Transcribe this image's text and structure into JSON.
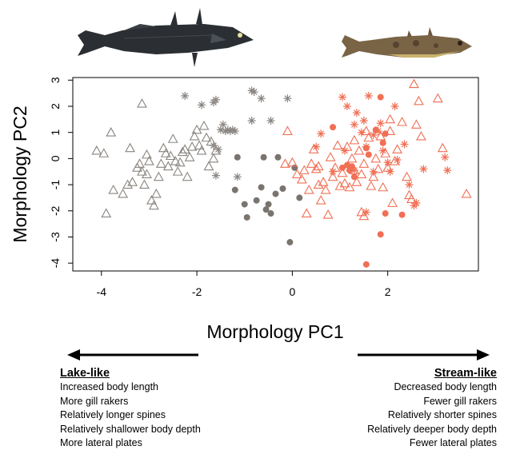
{
  "chart_data": {
    "type": "scatter",
    "xlabel": "Morphology PC1",
    "ylabel": "Morphology PC2",
    "xlim": [
      -4.6,
      3.9
    ],
    "ylim": [
      -4.3,
      3.1
    ],
    "xticks": [
      -4,
      -2,
      0,
      2
    ],
    "yticks": [
      3,
      2,
      1,
      0,
      -1,
      -2,
      -3,
      -4
    ],
    "grid": false,
    "legend": "none",
    "series": [
      {
        "color": "#8a8580",
        "marker": "triangle",
        "points": [
          [
            -4.1,
            0.3
          ],
          [
            -3.95,
            0.2
          ],
          [
            -3.8,
            1.0
          ],
          [
            -3.75,
            -1.2
          ],
          [
            -3.55,
            -1.35
          ],
          [
            -3.45,
            -1.0
          ],
          [
            -3.4,
            0.4
          ],
          [
            -3.35,
            -0.9
          ],
          [
            -3.25,
            -0.35
          ],
          [
            -3.2,
            -0.2
          ],
          [
            -3.15,
            -0.5
          ],
          [
            -3.1,
            -1.0
          ],
          [
            -3.05,
            -0.6
          ],
          [
            -3.0,
            -0.1
          ],
          [
            -2.95,
            -1.6
          ],
          [
            -2.9,
            -1.8
          ],
          [
            -2.85,
            -1.35
          ],
          [
            -2.8,
            -0.7
          ],
          [
            -2.75,
            -0.2
          ],
          [
            -2.7,
            0.4
          ],
          [
            -2.65,
            0.2
          ],
          [
            -2.6,
            -0.3
          ],
          [
            -2.55,
            0.1
          ],
          [
            -2.5,
            0.75
          ],
          [
            -2.45,
            -0.1
          ],
          [
            -2.4,
            -0.5
          ],
          [
            -2.35,
            -0.15
          ],
          [
            -2.3,
            0.25
          ],
          [
            -2.25,
            0.35
          ],
          [
            -2.2,
            -0.7
          ],
          [
            -2.15,
            0.05
          ],
          [
            -2.1,
            0.45
          ],
          [
            -2.05,
            0.85
          ],
          [
            -2.0,
            1.1
          ],
          [
            -1.95,
            0.5
          ],
          [
            -1.9,
            0.3
          ],
          [
            -1.85,
            1.25
          ],
          [
            -1.8,
            0.8
          ],
          [
            -1.75,
            -0.3
          ],
          [
            -1.7,
            0.65
          ],
          [
            -1.65,
            0.0
          ],
          [
            -1.6,
            0.3
          ],
          [
            -3.15,
            2.1
          ],
          [
            -3.9,
            -2.1
          ],
          [
            -3.05,
            0.15
          ]
        ]
      },
      {
        "color": "#8a8580",
        "marker": "asterisk",
        "points": [
          [
            -2.25,
            2.4
          ],
          [
            -1.9,
            2.05
          ],
          [
            -1.65,
            2.15
          ],
          [
            -1.6,
            2.25
          ],
          [
            -1.5,
            1.1
          ],
          [
            -1.4,
            1.05
          ],
          [
            -1.35,
            1.1
          ],
          [
            -1.3,
            1.05
          ],
          [
            -1.25,
            1.1
          ],
          [
            -1.2,
            1.05
          ],
          [
            -1.15,
            -0.7
          ],
          [
            -1.6,
            -0.65
          ],
          [
            -1.55,
            0.35
          ],
          [
            -0.85,
            2.6
          ],
          [
            -0.8,
            2.55
          ],
          [
            -0.65,
            2.3
          ],
          [
            -0.85,
            1.45
          ],
          [
            -0.45,
            1.45
          ],
          [
            -0.1,
            2.3
          ],
          [
            -1.45,
            1.3
          ],
          [
            -1.65,
            0.5
          ]
        ]
      },
      {
        "color": "#7a746e",
        "marker": "filled",
        "points": [
          [
            -1.15,
            0.05
          ],
          [
            -1.2,
            -1.2
          ],
          [
            -1.0,
            -1.75
          ],
          [
            -0.95,
            -2.25
          ],
          [
            -0.75,
            -1.6
          ],
          [
            -0.65,
            -1.1
          ],
          [
            -0.55,
            -1.95
          ],
          [
            -0.5,
            -1.75
          ],
          [
            -0.45,
            -2.1
          ],
          [
            -0.35,
            -1.35
          ],
          [
            -0.2,
            -1.15
          ],
          [
            -0.05,
            -3.2
          ],
          [
            0.05,
            -0.35
          ],
          [
            0.15,
            -1.5
          ],
          [
            -0.6,
            0.05
          ],
          [
            -0.3,
            0.05
          ]
        ]
      },
      {
        "color": "#f06f55",
        "marker": "triangle",
        "points": [
          [
            -0.15,
            -0.2
          ],
          [
            -0.1,
            1.05
          ],
          [
            0.0,
            -0.15
          ],
          [
            0.1,
            -0.6
          ],
          [
            0.2,
            -0.8
          ],
          [
            0.25,
            -0.45
          ],
          [
            0.3,
            -2.1
          ],
          [
            0.35,
            -1.2
          ],
          [
            0.4,
            -0.2
          ],
          [
            0.45,
            0.35
          ],
          [
            0.5,
            -0.4
          ],
          [
            0.55,
            -1.0
          ],
          [
            0.6,
            -1.6
          ],
          [
            0.65,
            -0.9
          ],
          [
            0.7,
            -1.2
          ],
          [
            0.75,
            -2.15
          ],
          [
            0.8,
            0.05
          ],
          [
            0.85,
            -0.7
          ],
          [
            0.9,
            -0.35
          ],
          [
            0.95,
            0.5
          ],
          [
            1.0,
            -1.05
          ],
          [
            1.05,
            -0.55
          ],
          [
            1.1,
            -0.95
          ],
          [
            1.15,
            0.45
          ],
          [
            1.2,
            -1.1
          ],
          [
            1.25,
            0.0
          ],
          [
            1.3,
            -0.45
          ],
          [
            1.35,
            -0.9
          ],
          [
            1.4,
            0.3
          ],
          [
            1.45,
            -0.6
          ],
          [
            1.5,
            -0.2
          ],
          [
            1.55,
            1.05
          ],
          [
            1.6,
            0.8
          ],
          [
            1.65,
            -1.05
          ],
          [
            1.7,
            -0.7
          ],
          [
            1.75,
            0.0
          ],
          [
            1.8,
            -0.4
          ],
          [
            1.85,
            0.85
          ],
          [
            1.9,
            -1.1
          ],
          [
            1.95,
            0.2
          ],
          [
            2.0,
            -0.35
          ],
          [
            2.05,
            1.05
          ],
          [
            2.1,
            -1.7
          ],
          [
            2.15,
            -0.1
          ],
          [
            2.2,
            0.35
          ],
          [
            2.3,
            1.4
          ],
          [
            2.4,
            -0.7
          ],
          [
            2.45,
            -1.4
          ],
          [
            2.55,
            2.85
          ],
          [
            2.6,
            1.3
          ],
          [
            2.65,
            2.2
          ],
          [
            2.7,
            0.85
          ],
          [
            2.5,
            -1.55
          ],
          [
            3.05,
            2.3
          ],
          [
            3.15,
            0.4
          ],
          [
            3.65,
            -1.35
          ],
          [
            1.45,
            -2.05
          ],
          [
            1.5,
            -2.2
          ],
          [
            2.05,
            1.5
          ],
          [
            1.3,
            0.7
          ],
          [
            0.55,
            -0.3
          ]
        ]
      },
      {
        "color": "#f06f55",
        "marker": "asterisk",
        "points": [
          [
            0.5,
            0.45
          ],
          [
            1.05,
            2.35
          ],
          [
            1.15,
            2.0
          ],
          [
            1.3,
            1.3
          ],
          [
            1.35,
            1.75
          ],
          [
            1.45,
            1.0
          ],
          [
            1.5,
            1.45
          ],
          [
            1.55,
            0.45
          ],
          [
            1.6,
            2.4
          ],
          [
            1.7,
            0.9
          ],
          [
            1.8,
            1.05
          ],
          [
            1.85,
            1.35
          ],
          [
            1.9,
            0.3
          ],
          [
            2.0,
            -0.15
          ],
          [
            2.05,
            -0.5
          ],
          [
            2.15,
            2.0
          ],
          [
            2.2,
            -0.05
          ],
          [
            2.35,
            0.55
          ],
          [
            2.45,
            -1.0
          ],
          [
            2.55,
            -1.8
          ],
          [
            2.6,
            -1.7
          ],
          [
            2.75,
            -0.4
          ],
          [
            3.2,
            0.05
          ],
          [
            3.25,
            -0.45
          ],
          [
            1.7,
            -0.5
          ],
          [
            1.1,
            0.3
          ],
          [
            0.6,
            0.95
          ],
          [
            1.3,
            -0.45
          ],
          [
            0.85,
            -0.5
          ],
          [
            1.55,
            -2.05
          ]
        ]
      },
      {
        "color": "#f06f55",
        "marker": "filled",
        "points": [
          [
            0.85,
            1.2
          ],
          [
            1.05,
            -0.35
          ],
          [
            1.15,
            -0.25
          ],
          [
            1.2,
            -0.45
          ],
          [
            1.25,
            -0.3
          ],
          [
            1.3,
            -0.7
          ],
          [
            1.55,
            0.4
          ],
          [
            1.6,
            0.15
          ],
          [
            1.75,
            1.1
          ],
          [
            1.85,
            2.35
          ],
          [
            1.9,
            0.6
          ],
          [
            1.95,
            -2.1
          ],
          [
            1.85,
            -2.9
          ],
          [
            1.55,
            -4.05
          ],
          [
            2.3,
            -2.15
          ],
          [
            1.95,
            0.95
          ]
        ]
      }
    ]
  },
  "annotations": {
    "left_heading": "Lake-like",
    "left_traits": [
      "Increased body length",
      "More gill rakers",
      "Relatively longer spines",
      "Relatively shallower body depth",
      "More lateral plates"
    ],
    "right_heading": "Stream-like",
    "right_traits": [
      "Decreased body length",
      "Fewer gill rakers",
      "Relatively shorter spines",
      "Relatively deeper body depth",
      "Fewer lateral plates"
    ]
  },
  "images": {
    "left_fish": "dark lake stickleback with long dorsal spines",
    "right_fish": "small mottled brown stream stickleback"
  }
}
